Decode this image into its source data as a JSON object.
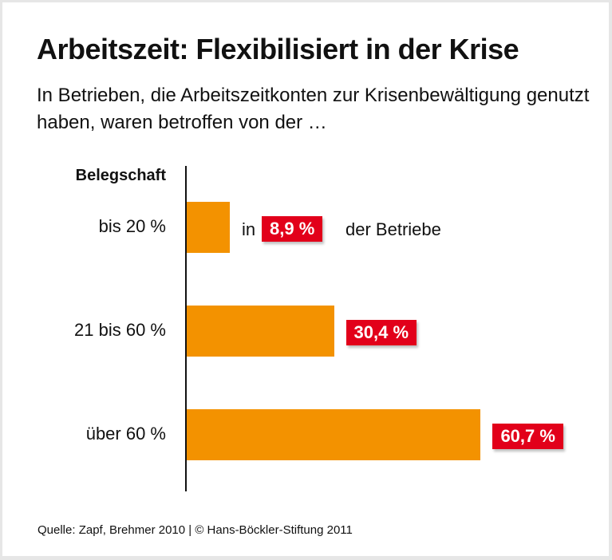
{
  "chart_data": {
    "type": "bar",
    "orientation": "horizontal",
    "title": "Arbeitszeit: Flexibilisiert in der Krise",
    "subtitle": "In Betrieben, die Arbeitszeitkonten zur Krisenbewältigung genutzt haben, waren betroffen von der …",
    "category_header": "Belegschaft",
    "categories": [
      "bis 20 %",
      "21 bis 60 %",
      "über 60 %"
    ],
    "values": [
      8.9,
      30.4,
      60.7
    ],
    "value_labels": [
      "8,9 %",
      "30,4 %",
      "60,7 %"
    ],
    "first_label_prefix": "in",
    "first_label_suffix": "der Betriebe",
    "unit": "%",
    "xlim": [
      0,
      100
    ],
    "grid": false,
    "colors": {
      "bar": "#f39200",
      "badge": "#e2001a"
    }
  },
  "source": "Quelle: Zapf, Brehmer 2010 | © Hans-Böckler-Stiftung 2011"
}
